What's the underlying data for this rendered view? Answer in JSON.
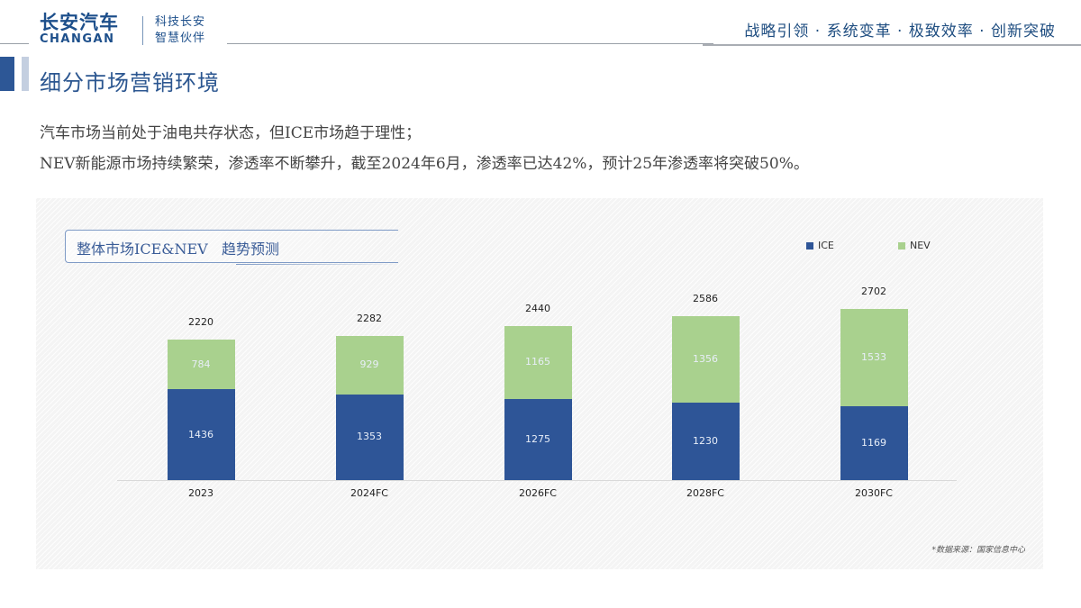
{
  "header": {
    "logo_cn": "长安汽车",
    "logo_en": "CHANGAN",
    "slogan_line1": "科技长安",
    "slogan_line2": "智慧伙伴",
    "motto": "战略引领 · 系统变革 · 极致效率 · 创新突破"
  },
  "page": {
    "title": "细分市场营销环境",
    "paragraph1": "汽车市场当前处于油电共存状态，但ICE市场趋于理性；",
    "paragraph2": "NEV新能源市场持续繁荣，渗透率不断攀升，截至2024年6月，渗透率已达42%，预计25年渗透率将突破50%。"
  },
  "colors": {
    "brand_blue": "#1d4f8b",
    "ice": "#2e5597",
    "nev": "#a9d18e"
  },
  "chart_data": {
    "type": "bar",
    "stacked": true,
    "title": "整体市场ICE&NEV   趋势预测",
    "categories": [
      "2023",
      "2024FC",
      "2026FC",
      "2028FC",
      "2030FC"
    ],
    "series": [
      {
        "name": "ICE",
        "color": "#2e5597",
        "values": [
          1436,
          1353,
          1275,
          1230,
          1169
        ]
      },
      {
        "name": "NEV",
        "color": "#a9d18e",
        "values": [
          784,
          929,
          1165,
          1356,
          1533
        ]
      }
    ],
    "totals": [
      2220,
      2282,
      2440,
      2586,
      2702
    ],
    "xlabel": "",
    "ylabel": "",
    "ylim": [
      0,
      2900
    ],
    "grid": false,
    "legend_position": "top-right",
    "source_note": "*数据来源：国家信息中心"
  },
  "chart": {
    "legend": [
      {
        "label": "ICE"
      },
      {
        "label": "NEV"
      }
    ],
    "bars": [
      {
        "category": "2023",
        "ice": "1436",
        "nev": "784",
        "total": "2220"
      },
      {
        "category": "2024FC",
        "ice": "1353",
        "nev": "929",
        "total": "2282"
      },
      {
        "category": "2026FC",
        "ice": "1275",
        "nev": "1165",
        "total": "2440"
      },
      {
        "category": "2028FC",
        "ice": "1230",
        "nev": "1356",
        "total": "2586"
      },
      {
        "category": "2030FC",
        "ice": "1169",
        "nev": "1533",
        "total": "2702"
      }
    ]
  }
}
